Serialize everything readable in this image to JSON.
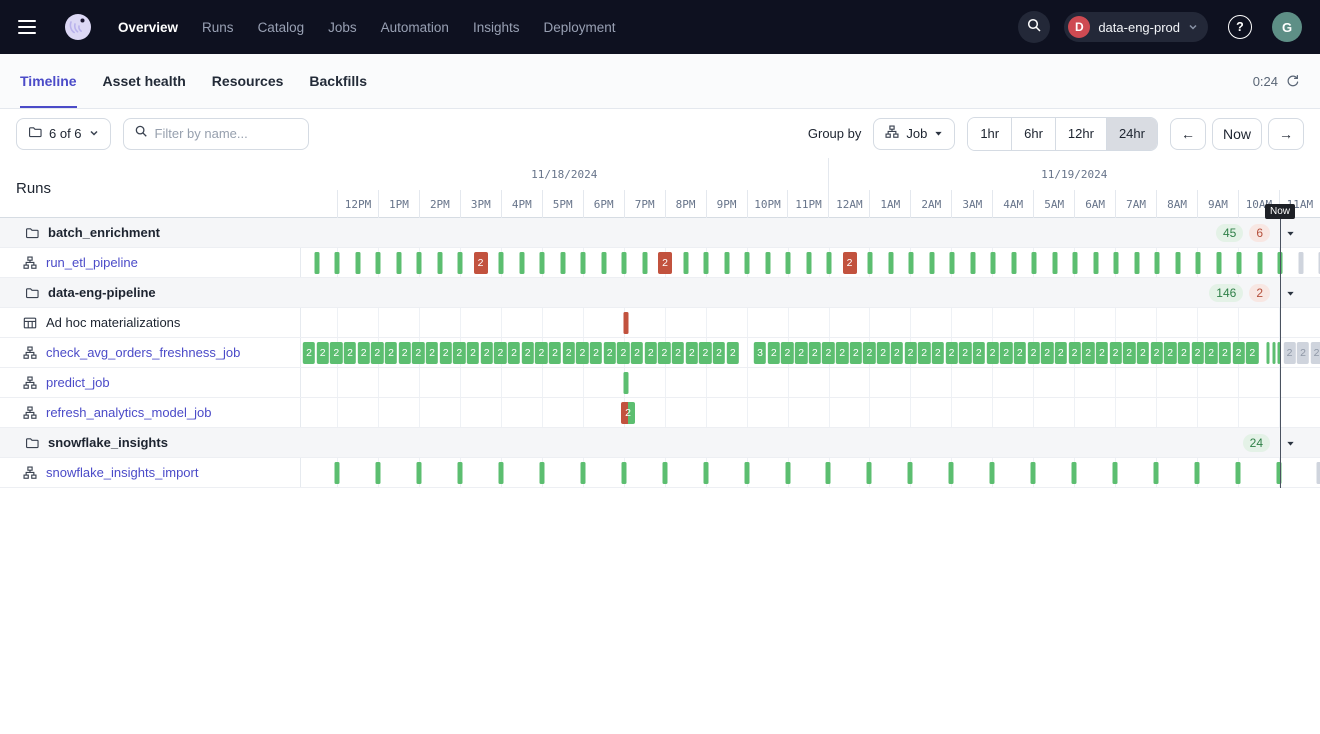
{
  "colors": {
    "accent": "#4B4BC8",
    "success": "#5CBE70",
    "failure": "#C2523E",
    "scheduled": "#CFD4DD",
    "topnav_bg": "#0E1120"
  },
  "topnav": {
    "items": [
      {
        "label": "Overview",
        "active": true
      },
      {
        "label": "Runs",
        "active": false
      },
      {
        "label": "Catalog",
        "active": false
      },
      {
        "label": "Jobs",
        "active": false
      },
      {
        "label": "Automation",
        "active": false
      },
      {
        "label": "Insights",
        "active": false
      },
      {
        "label": "Deployment",
        "active": false
      }
    ],
    "deployment": {
      "initial": "D",
      "name": "data-eng-prod"
    },
    "help_label": "?",
    "avatar_initial": "G"
  },
  "tabbar": {
    "tabs": [
      {
        "label": "Timeline",
        "active": true
      },
      {
        "label": "Asset health",
        "active": false
      },
      {
        "label": "Resources",
        "active": false
      },
      {
        "label": "Backfills",
        "active": false
      }
    ],
    "countdown": "0:24"
  },
  "toolbar": {
    "repo_filter": "6 of 6",
    "search_placeholder": "Filter by name...",
    "group_by_label": "Group by",
    "group_by_value": "Job",
    "ranges": [
      {
        "label": "1hr",
        "active": false
      },
      {
        "label": "6hr",
        "active": false
      },
      {
        "label": "12hr",
        "active": false
      },
      {
        "label": "24hr",
        "active": true
      }
    ],
    "prev_label": "←",
    "now_label": "Now",
    "next_label": "→"
  },
  "timeline": {
    "left_header": "Runs",
    "dates": [
      "11/18/2024",
      "11/19/2024"
    ],
    "hours": [
      "12PM",
      "1PM",
      "2PM",
      "3PM",
      "4PM",
      "5PM",
      "6PM",
      "7PM",
      "8PM",
      "9PM",
      "10PM",
      "11PM",
      "12AM",
      "1AM",
      "2AM",
      "3AM",
      "4AM",
      "5AM",
      "6AM",
      "7AM",
      "8AM",
      "9AM",
      "10AM",
      "11AM"
    ],
    "now_label": "Now",
    "rows": [
      {
        "kind": "group",
        "label": "batch_enrichment",
        "badges": [
          {
            "text": "45",
            "status": "success"
          },
          {
            "text": "6",
            "status": "failure"
          }
        ]
      },
      {
        "kind": "job",
        "label": "run_etl_pipeline",
        "icon": "job",
        "link": true,
        "groups": [
          {
            "type": "tick",
            "status": "success",
            "start": 316.5,
            "step": 20.5,
            "count": 48,
            "skip": [
              8,
              17,
              26
            ]
          },
          {
            "type": "box",
            "status": "failure",
            "label": "2",
            "start": 480.5,
            "step": 184.5,
            "count": 3,
            "w": 14
          },
          {
            "type": "tick",
            "status": "scheduled",
            "start": 1300.5,
            "step": 20.5,
            "count": 2
          }
        ]
      },
      {
        "kind": "group",
        "label": "data-eng-pipeline",
        "badges": [
          {
            "text": "146",
            "status": "success"
          },
          {
            "text": "2",
            "status": "failure"
          }
        ]
      },
      {
        "kind": "job",
        "label": "Ad hoc materializations",
        "icon": "grid",
        "link": false,
        "groups": [
          {
            "type": "tick",
            "status": "failure",
            "start": 626,
            "step": 0,
            "count": 1
          }
        ]
      },
      {
        "kind": "job",
        "label": "check_avg_orders_freshness_job",
        "icon": "job",
        "link": true,
        "groups": [
          {
            "type": "box",
            "status": "success",
            "label": "2",
            "start": 309,
            "step": 13.67,
            "count": 32
          },
          {
            "type": "box",
            "status": "success",
            "label": "3",
            "start": 760,
            "step": 0,
            "count": 1
          },
          {
            "type": "box",
            "status": "success",
            "label": "2",
            "start": 773.8,
            "step": 13.67,
            "count": 36
          },
          {
            "type": "tick",
            "status": "running",
            "start": 1268,
            "step": 5.5,
            "count": 3,
            "w": 3
          },
          {
            "type": "box",
            "status": "scheduled",
            "label": "2",
            "start": 1289.5,
            "step": 13.5,
            "count": 3
          }
        ]
      },
      {
        "kind": "job",
        "label": "predict_job",
        "icon": "job",
        "link": true,
        "groups": [
          {
            "type": "tick",
            "status": "success",
            "start": 626,
            "step": 0,
            "count": 1
          }
        ]
      },
      {
        "kind": "job",
        "label": "refresh_analytics_model_job",
        "icon": "job",
        "link": true,
        "groups": [
          {
            "type": "box",
            "status": "split",
            "label": "2",
            "start": 628,
            "step": 0,
            "count": 1,
            "w": 14
          }
        ]
      },
      {
        "kind": "group",
        "label": "snowflake_insights",
        "badges": [
          {
            "text": "24",
            "status": "success"
          }
        ]
      },
      {
        "kind": "job",
        "label": "snowflake_insights_import",
        "icon": "job",
        "link": true,
        "groups": [
          {
            "type": "tick",
            "status": "success",
            "start": 337,
            "step": 40.958,
            "count": 24
          },
          {
            "type": "tick",
            "status": "scheduled",
            "start": 1319,
            "step": 0,
            "count": 1
          }
        ]
      }
    ]
  }
}
